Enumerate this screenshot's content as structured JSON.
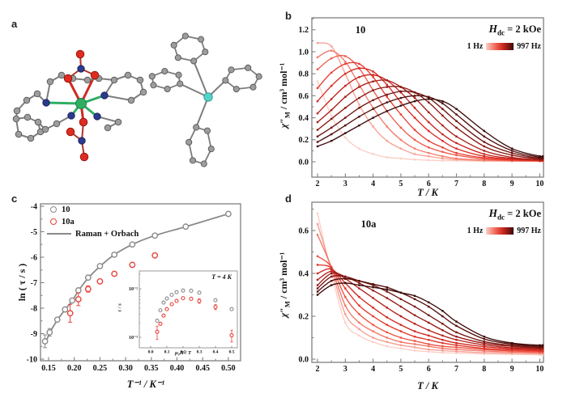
{
  "panels": {
    "a": {
      "label": "a"
    },
    "b": {
      "label": "b",
      "title": "10"
    },
    "c": {
      "label": "c"
    },
    "d": {
      "label": "d",
      "title": "10a"
    }
  },
  "ac_legend": {
    "field_pre": "H",
    "field_sub": "dc",
    "field_post": " = 2 kOe",
    "low": "1 Hz",
    "high": "997 Hz"
  },
  "ac_axes": {
    "xlabel": "T / K",
    "ylabel_chi": "χ″",
    "ylabel_sub": "M",
    "ylabel_rest": " / cm³ mol⁻¹"
  },
  "c_axes": {
    "xlabel": "T⁻¹ / K⁻¹",
    "ylabel": "ln ( τ / s )"
  },
  "c_legend": {
    "s1": "10",
    "s2": "10a",
    "fit": "Raman + Orbach"
  },
  "inset": {
    "annotation": "T = 4 K",
    "xlabel": "μ₀H / T",
    "ylabel": "τ / s",
    "ytick_labels": [
      "10⁻²",
      "10⁻³"
    ]
  },
  "colors": {
    "axis": "#808080",
    "gray_series": "#8a8a8a",
    "red_series": "#e8423a",
    "freq_ramp": [
      "#fbcfc6",
      "#f7a195",
      "#f37c6d",
      "#ee5b4b",
      "#e73d31",
      "#d92b22",
      "#c4241d",
      "#a81f19",
      "#8b1914",
      "#6d1410",
      "#500f0c",
      "#3a0b0a"
    ],
    "atoms": {
      "metal": "#2fae62",
      "oxygen": "#e02b20",
      "nitrogen": "#2d3a8c",
      "carbon": "#9d9d9d",
      "phosphorus": "#55d3c7"
    }
  },
  "chart_data": [
    {
      "id": "b",
      "type": "line",
      "title": "10",
      "xlabel": "T / K",
      "ylabel": "χ″M / cm³ mol⁻¹",
      "legend": "ac frequencies 1 Hz (light) to 997 Hz (dark), Hdc = 2 kOe",
      "xlim": [
        2,
        10
      ],
      "ylim": [
        0,
        1.2
      ],
      "xticks": [
        2,
        3,
        4,
        5,
        6,
        7,
        8,
        9,
        10
      ],
      "yticks": [
        0.0,
        0.2,
        0.4,
        0.6,
        0.8,
        1.0,
        1.2
      ],
      "x": [
        2,
        2.5,
        3,
        3.5,
        4,
        4.5,
        5,
        5.5,
        6,
        6.5,
        7,
        8,
        9,
        10,
        10.3
      ],
      "series": [
        {
          "rank": 1,
          "values": [
            0.73,
            0.42,
            0.22,
            0.12,
            0.07,
            0.04,
            0.03,
            0.02,
            0.015,
            0.01,
            0.01,
            0.005,
            0.004,
            0.003,
            0.003
          ]
        },
        {
          "rank": 2,
          "values": [
            1.08,
            1.05,
            0.8,
            0.52,
            0.32,
            0.19,
            0.12,
            0.07,
            0.05,
            0.03,
            0.02,
            0.01,
            0.007,
            0.005,
            0.005
          ]
        },
        {
          "rank": 3,
          "values": [
            0.95,
            1.01,
            0.91,
            0.7,
            0.49,
            0.32,
            0.2,
            0.12,
            0.08,
            0.05,
            0.03,
            0.015,
            0.008,
            0.006,
            0.006
          ]
        },
        {
          "rank": 4,
          "values": [
            0.84,
            0.94,
            0.96,
            0.85,
            0.65,
            0.46,
            0.31,
            0.2,
            0.13,
            0.09,
            0.06,
            0.025,
            0.012,
            0.008,
            0.008
          ]
        },
        {
          "rank": 5,
          "values": [
            0.67,
            0.81,
            0.89,
            0.89,
            0.77,
            0.59,
            0.43,
            0.29,
            0.19,
            0.13,
            0.08,
            0.035,
            0.016,
            0.009,
            0.009
          ]
        },
        {
          "rank": 6,
          "values": [
            0.55,
            0.69,
            0.8,
            0.85,
            0.82,
            0.7,
            0.54,
            0.4,
            0.28,
            0.19,
            0.12,
            0.05,
            0.022,
            0.011,
            0.011
          ]
        },
        {
          "rank": 7,
          "values": [
            0.44,
            0.57,
            0.69,
            0.77,
            0.79,
            0.74,
            0.63,
            0.49,
            0.36,
            0.25,
            0.17,
            0.07,
            0.03,
            0.014,
            0.014
          ]
        },
        {
          "rank": 8,
          "values": [
            0.36,
            0.47,
            0.59,
            0.68,
            0.73,
            0.74,
            0.68,
            0.58,
            0.45,
            0.33,
            0.23,
            0.1,
            0.04,
            0.018,
            0.018
          ]
        },
        {
          "rank": 9,
          "values": [
            0.29,
            0.39,
            0.49,
            0.58,
            0.65,
            0.68,
            0.68,
            0.63,
            0.54,
            0.42,
            0.31,
            0.14,
            0.06,
            0.025,
            0.025
          ]
        },
        {
          "rank": 10,
          "values": [
            0.23,
            0.31,
            0.4,
            0.49,
            0.56,
            0.61,
            0.64,
            0.63,
            0.58,
            0.48,
            0.37,
            0.18,
            0.08,
            0.03,
            0.03
          ]
        },
        {
          "rank": 11,
          "values": [
            0.18,
            0.25,
            0.33,
            0.41,
            0.48,
            0.54,
            0.58,
            0.6,
            0.59,
            0.53,
            0.43,
            0.23,
            0.1,
            0.04,
            0.04
          ]
        },
        {
          "rank": 12,
          "values": [
            0.14,
            0.19,
            0.26,
            0.33,
            0.4,
            0.46,
            0.51,
            0.55,
            0.57,
            0.55,
            0.48,
            0.28,
            0.12,
            0.05,
            0.05
          ]
        }
      ]
    },
    {
      "id": "d",
      "type": "line",
      "title": "10a",
      "xlabel": "T / K",
      "ylabel": "χ″M / cm³ mol⁻¹",
      "legend": "ac frequencies 1 Hz (light) to 997 Hz (dark), Hdc = 2 kOe",
      "xlim": [
        2,
        10
      ],
      "ylim": [
        0,
        0.7
      ],
      "xticks": [
        2,
        3,
        4,
        5,
        6,
        7,
        8,
        9,
        10
      ],
      "yticks": [
        0.0,
        0.2,
        0.4,
        0.6
      ],
      "x": [
        2,
        2.5,
        3,
        3.5,
        4,
        4.5,
        5,
        5.5,
        6,
        6.5,
        7,
        8,
        9,
        10,
        10.3
      ],
      "series": [
        {
          "rank": 1,
          "values": [
            0.68,
            0.4,
            0.17,
            0.11,
            0.08,
            0.06,
            0.05,
            0.04,
            0.035,
            0.03,
            0.028,
            0.024,
            0.022,
            0.02,
            0.02
          ]
        },
        {
          "rank": 2,
          "values": [
            0.63,
            0.42,
            0.21,
            0.14,
            0.1,
            0.08,
            0.065,
            0.055,
            0.045,
            0.04,
            0.036,
            0.03,
            0.027,
            0.025,
            0.025
          ]
        },
        {
          "rank": 3,
          "values": [
            0.58,
            0.43,
            0.25,
            0.17,
            0.13,
            0.1,
            0.08,
            0.07,
            0.06,
            0.05,
            0.045,
            0.038,
            0.033,
            0.03,
            0.03
          ]
        },
        {
          "rank": 4,
          "values": [
            0.48,
            0.43,
            0.29,
            0.21,
            0.16,
            0.125,
            0.1,
            0.085,
            0.07,
            0.06,
            0.055,
            0.045,
            0.038,
            0.034,
            0.034
          ]
        },
        {
          "rank": 5,
          "values": [
            0.44,
            0.425,
            0.33,
            0.25,
            0.2,
            0.16,
            0.13,
            0.105,
            0.09,
            0.075,
            0.065,
            0.05,
            0.043,
            0.038,
            0.038
          ]
        },
        {
          "rank": 6,
          "values": [
            0.4,
            0.42,
            0.355,
            0.29,
            0.24,
            0.195,
            0.16,
            0.13,
            0.11,
            0.09,
            0.075,
            0.058,
            0.048,
            0.042,
            0.042
          ]
        },
        {
          "rank": 7,
          "values": [
            0.37,
            0.41,
            0.375,
            0.33,
            0.285,
            0.24,
            0.2,
            0.165,
            0.135,
            0.11,
            0.09,
            0.066,
            0.053,
            0.047,
            0.047
          ]
        },
        {
          "rank": 8,
          "values": [
            0.345,
            0.4,
            0.385,
            0.355,
            0.32,
            0.285,
            0.245,
            0.205,
            0.17,
            0.135,
            0.105,
            0.074,
            0.059,
            0.051,
            0.051
          ]
        },
        {
          "rank": 9,
          "values": [
            0.33,
            0.385,
            0.385,
            0.365,
            0.345,
            0.315,
            0.28,
            0.245,
            0.205,
            0.165,
            0.125,
            0.082,
            0.064,
            0.055,
            0.055
          ]
        },
        {
          "rank": 10,
          "values": [
            0.315,
            0.365,
            0.375,
            0.365,
            0.35,
            0.335,
            0.31,
            0.28,
            0.245,
            0.2,
            0.155,
            0.094,
            0.07,
            0.06,
            0.06
          ]
        },
        {
          "rank": 11,
          "values": [
            0.3,
            0.345,
            0.355,
            0.345,
            0.335,
            0.325,
            0.31,
            0.295,
            0.265,
            0.225,
            0.175,
            0.105,
            0.075,
            0.065,
            0.065
          ]
        }
      ]
    },
    {
      "id": "c",
      "type": "scatter",
      "xlabel": "T⁻¹ / K⁻¹",
      "ylabel": "ln ( τ / s )",
      "xlim": [
        0.134,
        0.524
      ],
      "ylim": [
        -10.06,
        -3.9
      ],
      "xticks": [
        0.15,
        0.2,
        0.25,
        0.3,
        0.35,
        0.4,
        0.45,
        0.5
      ],
      "yticks": [
        -4,
        -5,
        -6,
        -7,
        -8,
        -9,
        -10
      ],
      "series": [
        {
          "name": "10",
          "x": [
            0.143,
            0.152,
            0.167,
            0.182,
            0.196,
            0.208,
            0.227,
            0.25,
            0.278,
            0.313,
            0.357,
            0.417,
            0.5
          ],
          "y": [
            -9.3,
            -8.95,
            -8.45,
            -8.05,
            -7.7,
            -7.3,
            -6.8,
            -6.35,
            -5.9,
            -5.5,
            -5.15,
            -4.8,
            -4.3
          ],
          "err": [
            0.25,
            0.15,
            0,
            0,
            0,
            0,
            0,
            0,
            0,
            0,
            0,
            0,
            0
          ]
        },
        {
          "name": "10a",
          "x": [
            0.192,
            0.208,
            0.227,
            0.25,
            0.278,
            0.313,
            0.357
          ],
          "y": [
            -8.2,
            -7.65,
            -7.25,
            -6.95,
            -6.65,
            -6.3,
            -5.93
          ],
          "err": [
            0.35,
            0.25,
            0.12,
            0,
            0,
            0,
            0.08
          ]
        },
        {
          "name": "Raman + Orbach",
          "role": "fit-line",
          "x": [
            0.143,
            0.152,
            0.167,
            0.182,
            0.196,
            0.208,
            0.227,
            0.25,
            0.278,
            0.313,
            0.357,
            0.417,
            0.5
          ],
          "y": [
            -9.42,
            -8.98,
            -8.47,
            -8.06,
            -7.71,
            -7.32,
            -6.82,
            -6.36,
            -5.9,
            -5.5,
            -5.15,
            -4.8,
            -4.3
          ]
        }
      ]
    },
    {
      "id": "c-inset",
      "type": "scatter",
      "annotation": "T = 4 K",
      "xlabel": "μ₀H / T",
      "ylabel": "τ / s",
      "ylog": true,
      "xlim": [
        -0.03,
        0.55
      ],
      "ylim": [
        0.0007,
        0.022
      ],
      "xticks": [
        0.0,
        0.1,
        0.2,
        0.3,
        0.4,
        0.5
      ],
      "yticks": [
        0.01,
        0.001
      ],
      "series": [
        {
          "name": "10",
          "x": [
            0.04,
            0.06,
            0.08,
            0.1,
            0.13,
            0.16,
            0.2,
            0.25,
            0.3,
            0.4,
            0.5
          ],
          "y": [
            0.0022,
            0.0036,
            0.0052,
            0.0063,
            0.0075,
            0.0085,
            0.0092,
            0.0091,
            0.0083,
            0.0058,
            0.0038
          ],
          "err": [
            0,
            0,
            0,
            0,
            0,
            0,
            0,
            0,
            0,
            0,
            0
          ]
        },
        {
          "name": "10a",
          "x": [
            0.04,
            0.06,
            0.08,
            0.1,
            0.13,
            0.16,
            0.2,
            0.25,
            0.3,
            0.4,
            0.5
          ],
          "y": [
            0.0013,
            0.0019,
            0.0028,
            0.0038,
            0.0048,
            0.0056,
            0.0064,
            0.0062,
            0.0056,
            0.0042,
            0.0011
          ],
          "err": [
            0.0004,
            0,
            0,
            0,
            0,
            0,
            0,
            0,
            0.0006,
            0.0005,
            0.0003
          ]
        }
      ]
    }
  ]
}
